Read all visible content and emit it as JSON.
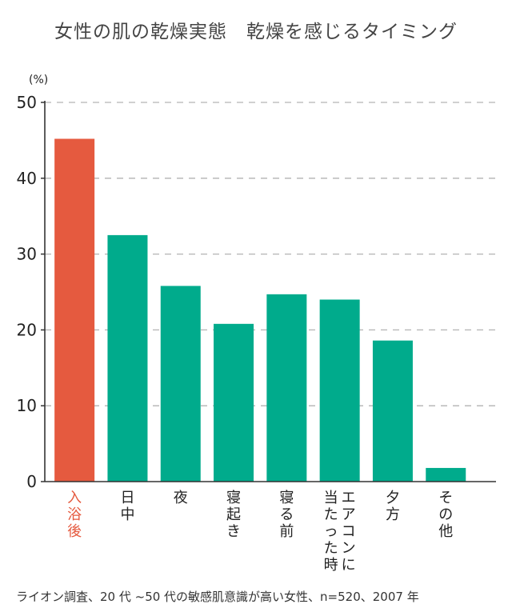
{
  "title": "女性の肌の乾燥実態　乾燥を感じるタイミング",
  "y_unit": "(%)",
  "source": "ライオン調査、20 代 ~50 代の敏感肌意識が高い女性、n=520、2007 年",
  "colors": {
    "highlight": "#e55a3f",
    "bar": "#00ab8c",
    "grid": "#b3b3b3",
    "axis": "#333333"
  },
  "chart_data": {
    "type": "bar",
    "categories": [
      "入浴後",
      "日中",
      "夜",
      "寝起き",
      "寝る前",
      "エアコンに当たった時",
      "夕方",
      "その他"
    ],
    "category_label_columns": [
      [
        "入浴後"
      ],
      [
        "日中"
      ],
      [
        "夜"
      ],
      [
        "寝起き"
      ],
      [
        "寝る前"
      ],
      [
        "エアコンに",
        "当たった時"
      ],
      [
        "夕方"
      ],
      [
        "その他"
      ]
    ],
    "values": [
      45.2,
      32.5,
      25.8,
      20.8,
      24.7,
      24.0,
      18.6,
      1.8
    ],
    "highlight_index": 0,
    "ylim": [
      0,
      50
    ],
    "yticks": [
      0,
      10,
      20,
      30,
      40,
      50
    ],
    "grid": true
  }
}
